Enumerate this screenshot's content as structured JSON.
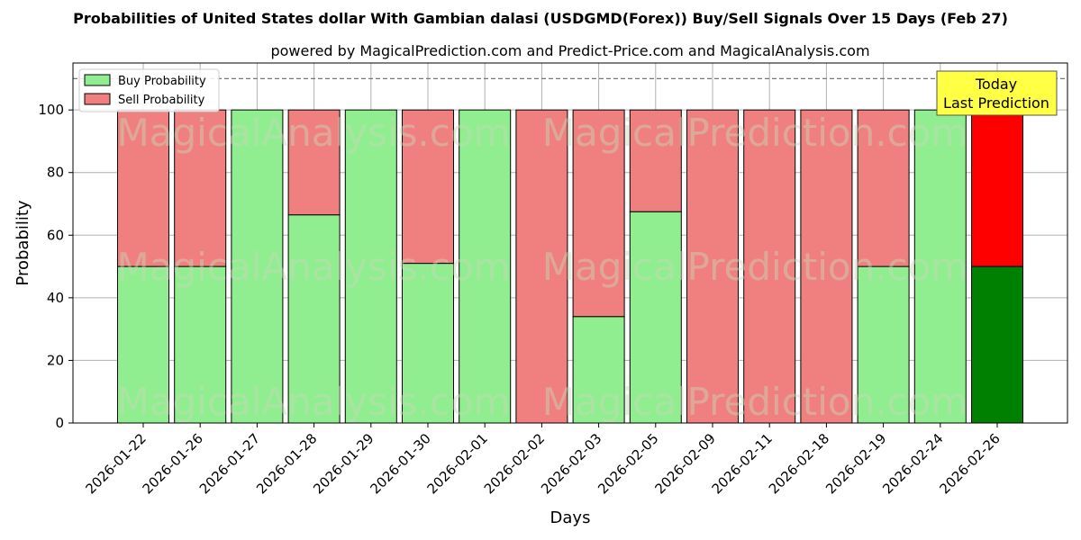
{
  "chart_data": {
    "type": "bar",
    "stacked": true,
    "title": "Probabilities of United States dollar With Gambian dalasi (USDGMD(Forex)) Buy/Sell Signals Over 15 Days (Feb 27)",
    "subtitle": "powered by MagicalPrediction.com and Predict-Price.com and MagicalAnalysis.com",
    "xlabel": "Days",
    "ylabel": "Probability",
    "ylim": [
      0,
      115
    ],
    "yticks": [
      0,
      20,
      40,
      60,
      80,
      100
    ],
    "grid": true,
    "legend_position": "top-left",
    "reference_line": 110,
    "categories": [
      "2026-01-22",
      "2026-01-26",
      "2026-01-27",
      "2026-01-28",
      "2026-01-29",
      "2026-01-30",
      "2026-02-01",
      "2026-02-02",
      "2026-02-03",
      "2026-02-05",
      "2026-02-09",
      "2026-02-11",
      "2026-02-18",
      "2026-02-19",
      "2026-02-24",
      "2026-02-26"
    ],
    "series": [
      {
        "name": "Buy Probability",
        "color": "#90ee90",
        "highlight_color": "#008000",
        "values": [
          50,
          50,
          100,
          66.5,
          100,
          51,
          100,
          0,
          34,
          67.5,
          0,
          0,
          0,
          50,
          100,
          50
        ]
      },
      {
        "name": "Sell Probability",
        "color": "#f08080",
        "highlight_color": "#ff0000",
        "values": [
          50,
          50,
          0,
          33.5,
          0,
          49,
          0,
          100,
          66,
          32.5,
          100,
          100,
          100,
          50,
          0,
          50
        ]
      }
    ],
    "highlight_index": 15,
    "annotation": {
      "line1": "Today",
      "line2": "Last Prediction",
      "bg_color": "#ffff44"
    },
    "watermark": [
      "MagicalAnalysis.com",
      "MagicalPrediction.com"
    ]
  }
}
